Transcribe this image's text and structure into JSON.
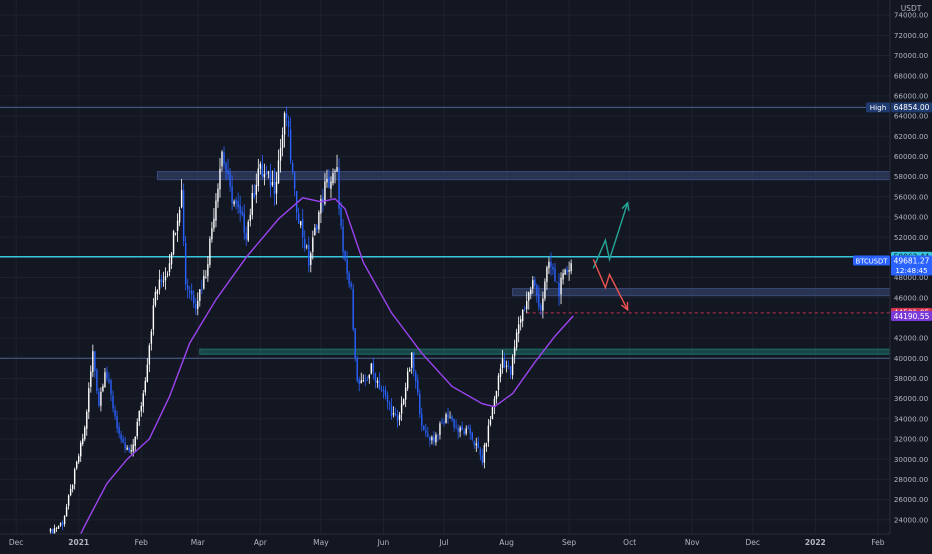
{
  "chart_data": {
    "type": "candlestick",
    "symbol": "BTCUSDT",
    "currency_label": "USDT",
    "y_scale": "linear",
    "ylim": [
      21000,
      75500
    ],
    "x_start_date": "2020-11-23",
    "x_end_date": "2022-02-07",
    "y_ticks": [
      {
        "value": 22000,
        "label": "22000.00"
      },
      {
        "value": 24000,
        "label": "24000.00"
      },
      {
        "value": 26000,
        "label": "26000.00"
      },
      {
        "value": 28000,
        "label": "28000.00"
      },
      {
        "value": 30000,
        "label": "30000.00"
      },
      {
        "value": 32000,
        "label": "32000.00"
      },
      {
        "value": 34000,
        "label": "34000.00"
      },
      {
        "value": 36000,
        "label": "36000.00"
      },
      {
        "value": 38000,
        "label": "38000.00"
      },
      {
        "value": 40000,
        "label": "40000.00"
      },
      {
        "value": 42000,
        "label": "42000.00"
      },
      {
        "value": 44000,
        "label": "44000.00"
      },
      {
        "value": 46000,
        "label": "46000.00"
      },
      {
        "value": 48000,
        "label": "48000.00"
      },
      {
        "value": 50000,
        "label": "50000.00"
      },
      {
        "value": 52000,
        "label": "52000.00"
      },
      {
        "value": 54000,
        "label": "54000.00"
      },
      {
        "value": 56000,
        "label": "56000.00"
      },
      {
        "value": 58000,
        "label": "58000.00"
      },
      {
        "value": 60000,
        "label": "60000.00"
      },
      {
        "value": 62000,
        "label": "62000.00"
      },
      {
        "value": 64000,
        "label": "64000.00"
      },
      {
        "value": 66000,
        "label": "66000.00"
      },
      {
        "value": 68000,
        "label": "68000.00"
      },
      {
        "value": 70000,
        "label": "70000.00"
      },
      {
        "value": 72000,
        "label": "72000.00"
      },
      {
        "value": 74000,
        "label": "74000.00"
      }
    ],
    "x_ticks": [
      {
        "date": "2020-12-01",
        "label": "Dec",
        "bold": false
      },
      {
        "date": "2021-01-01",
        "label": "2021",
        "bold": true
      },
      {
        "date": "2021-02-01",
        "label": "Feb",
        "bold": false
      },
      {
        "date": "2021-03-01",
        "label": "Mar",
        "bold": false
      },
      {
        "date": "2021-04-01",
        "label": "Apr",
        "bold": false
      },
      {
        "date": "2021-05-01",
        "label": "May",
        "bold": false
      },
      {
        "date": "2021-06-01",
        "label": "Jun",
        "bold": false
      },
      {
        "date": "2021-07-01",
        "label": "Jul",
        "bold": false
      },
      {
        "date": "2021-08-01",
        "label": "Aug",
        "bold": false
      },
      {
        "date": "2021-09-01",
        "label": "Sep",
        "bold": false
      },
      {
        "date": "2021-10-01",
        "label": "Oct",
        "bold": false
      },
      {
        "date": "2021-11-01",
        "label": "Nov",
        "bold": false
      },
      {
        "date": "2021-12-01",
        "label": "Dec",
        "bold": false
      },
      {
        "date": "2022-01-01",
        "label": "2022",
        "bold": true
      },
      {
        "date": "2022-02-01",
        "label": "Feb",
        "bold": false
      }
    ],
    "price_anchors": [
      [
        "2020-12-18",
        22800
      ],
      [
        "2020-12-24",
        23700
      ],
      [
        "2020-12-28",
        26800
      ],
      [
        "2021-01-04",
        33000
      ],
      [
        "2021-01-08",
        40500
      ],
      [
        "2021-01-11",
        35500
      ],
      [
        "2021-01-14",
        39000
      ],
      [
        "2021-01-22",
        31500
      ],
      [
        "2021-01-27",
        30500
      ],
      [
        "2021-02-02",
        36500
      ],
      [
        "2021-02-08",
        46500
      ],
      [
        "2021-02-14",
        48800
      ],
      [
        "2021-02-21",
        56500
      ],
      [
        "2021-02-23",
        47500
      ],
      [
        "2021-02-28",
        45500
      ],
      [
        "2021-03-05",
        48500
      ],
      [
        "2021-03-13",
        60500
      ],
      [
        "2021-03-17",
        56500
      ],
      [
        "2021-03-25",
        52500
      ],
      [
        "2021-03-31",
        58800
      ],
      [
        "2021-04-08",
        57000
      ],
      [
        "2021-04-13",
        63500
      ],
      [
        "2021-04-14",
        64000
      ],
      [
        "2021-04-18",
        56000
      ],
      [
        "2021-04-25",
        49500
      ],
      [
        "2021-04-29",
        53500
      ],
      [
        "2021-05-03",
        57000
      ],
      [
        "2021-05-09",
        58300
      ],
      [
        "2021-05-12",
        50000
      ],
      [
        "2021-05-16",
        46500
      ],
      [
        "2021-05-19",
        37500
      ],
      [
        "2021-05-22",
        37300
      ],
      [
        "2021-05-26",
        39000
      ],
      [
        "2021-06-01",
        36500
      ],
      [
        "2021-06-08",
        33500
      ],
      [
        "2021-06-15",
        40000
      ],
      [
        "2021-06-21",
        32500
      ],
      [
        "2021-06-26",
        32000
      ],
      [
        "2021-07-03",
        34500
      ],
      [
        "2021-07-08",
        32800
      ],
      [
        "2021-07-14",
        32600
      ],
      [
        "2021-07-20",
        29900
      ],
      [
        "2021-07-24",
        34000
      ],
      [
        "2021-07-30",
        40000
      ],
      [
        "2021-08-03",
        38500
      ],
      [
        "2021-08-07",
        43500
      ],
      [
        "2021-08-14",
        47500
      ],
      [
        "2021-08-18",
        45000
      ],
      [
        "2021-08-22",
        49500
      ],
      [
        "2021-08-27",
        46800
      ],
      [
        "2021-09-02",
        49681
      ]
    ],
    "moving_average": {
      "color": "#9c44f0",
      "points": [
        [
          "2020-12-27",
          20200
        ],
        [
          "2021-01-05",
          23800
        ],
        [
          "2021-01-15",
          27600
        ],
        [
          "2021-01-25",
          30000
        ],
        [
          "2021-02-05",
          32000
        ],
        [
          "2021-02-15",
          36200
        ],
        [
          "2021-02-25",
          41500
        ],
        [
          "2021-03-10",
          45800
        ],
        [
          "2021-03-25",
          50000
        ],
        [
          "2021-04-10",
          53800
        ],
        [
          "2021-04-22",
          55900
        ],
        [
          "2021-05-01",
          55500
        ],
        [
          "2021-05-08",
          55800
        ],
        [
          "2021-05-13",
          54800
        ],
        [
          "2021-05-22",
          49500
        ],
        [
          "2021-06-05",
          44500
        ],
        [
          "2021-06-20",
          40500
        ],
        [
          "2021-07-05",
          37200
        ],
        [
          "2021-07-20",
          35500
        ],
        [
          "2021-07-26",
          35200
        ],
        [
          "2021-08-04",
          36500
        ],
        [
          "2021-08-15",
          39600
        ],
        [
          "2021-08-25",
          42200
        ],
        [
          "2021-09-03",
          44190
        ]
      ]
    },
    "zones": [
      {
        "name": "resistance-zone-58000",
        "start": "2021-02-09",
        "end": "2022-02-07",
        "low": 57700,
        "high": 58500,
        "color": "#3b4a7a"
      },
      {
        "name": "support-zone-46600",
        "start": "2021-08-04",
        "end": "2022-02-07",
        "low": 46200,
        "high": 46900,
        "color": "#3b4a7a"
      },
      {
        "name": "support-zone-40700",
        "start": "2021-03-02",
        "end": "2022-02-07",
        "low": 40400,
        "high": 40900,
        "color": "#1f6f6a"
      }
    ],
    "lines": [
      {
        "name": "level-50062-line",
        "value": 50062.44,
        "color": "#37c6dc"
      },
      {
        "name": "high-64854-line",
        "value": 64854.0,
        "color": "#4a6192"
      },
      {
        "name": "level-40000-line",
        "value": 40000,
        "color": "#4a6192"
      },
      {
        "name": "level-44502-dashed-line",
        "value": 44501.95,
        "color": "#c0324f",
        "start": "2021-08-11"
      }
    ],
    "projections": [
      {
        "name": "bullish-projection-arrow",
        "color": "#26a69a",
        "points": [
          [
            "2021-09-13",
            48900
          ],
          [
            "2021-09-19",
            51700
          ],
          [
            "2021-09-21",
            49800
          ],
          [
            "2021-09-30",
            55400
          ]
        ]
      },
      {
        "name": "bearish-projection-arrow",
        "color": "#ef5350",
        "points": [
          [
            "2021-09-13",
            49800
          ],
          [
            "2021-09-19",
            47000
          ],
          [
            "2021-09-21",
            48300
          ],
          [
            "2021-09-30",
            44800
          ]
        ]
      }
    ],
    "price_labels": [
      {
        "name": "level-50062-label",
        "value": 50062.44,
        "label": "50062.44",
        "bg": "#37c6dc",
        "fg": "#0d1117"
      },
      {
        "name": "current-price-label",
        "value": 49681.27,
        "label": "49681.27",
        "bg": "#2962ff",
        "fg": "#ffffff",
        "subtext": "12:48:45"
      },
      {
        "name": "level-44502-label",
        "value": 44501.95,
        "label": "44501.95",
        "bg": "#d0344f",
        "fg": "#ffffff"
      },
      {
        "name": "ma-44190-label",
        "value": 44190.55,
        "label": "44190.55",
        "bg": "#7b3bd8",
        "fg": "#ffffff"
      },
      {
        "name": "high-64854-label",
        "value": 64854.0,
        "label": "64854.00",
        "bg": "#1f3a6e",
        "fg": "#ffffff",
        "tag": "High"
      }
    ],
    "current_price": {
      "value": 49681.27,
      "label": "49681.27",
      "time": "12:48:45",
      "symbol_tag": "BTCUSDT"
    }
  },
  "colors": {
    "background": "#131722",
    "grid": "#1e2230",
    "axis_text": "#b2b5be",
    "candle_up": "#ffffff",
    "candle_down": "#2962ff"
  }
}
